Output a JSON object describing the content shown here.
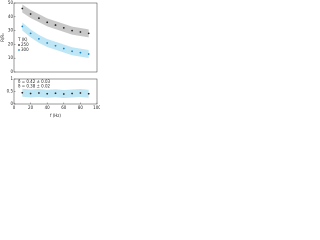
{
  "chart_data": [
    {
      "type": "scatter",
      "ylabel": "R/R₀",
      "x": [
        10,
        20,
        30,
        40,
        50,
        60,
        70,
        80,
        90
      ],
      "xlim": [
        0,
        100
      ],
      "ylim": [
        0,
        50
      ],
      "yticks": [
        0,
        10,
        20,
        30,
        40,
        50
      ],
      "legend_title": "T (K)",
      "series": [
        {
          "name": "250",
          "color": "#222222",
          "band_color": "#c8c8c8",
          "values": [
            46,
            42,
            39,
            36,
            34,
            32,
            30,
            29,
            28
          ]
        },
        {
          "name": "300",
          "color": "#1a7fc0",
          "band_color": "#bfe6f5",
          "values": [
            33,
            28,
            24,
            21,
            19,
            17,
            15,
            14,
            13
          ]
        }
      ]
    },
    {
      "type": "scatter",
      "xlabel": "f (Hz)",
      "x": [
        10,
        20,
        30,
        40,
        50,
        60,
        70,
        80,
        90
      ],
      "xlim": [
        0,
        100
      ],
      "xticks": [
        0,
        20,
        40,
        60,
        80,
        100
      ],
      "ylim": [
        0,
        1
      ],
      "yticks": [
        0,
        0.5,
        1
      ],
      "annotations": [
        "δ = 0.42 ± 0.03",
        "δ = 0.38 ± 0.02"
      ],
      "series": [
        {
          "name": "250",
          "color": "#222222",
          "band_color": "#bfe6f5",
          "values": [
            0.45,
            0.42,
            0.44,
            0.41,
            0.43,
            0.4,
            0.42,
            0.44,
            0.41
          ]
        }
      ]
    }
  ]
}
